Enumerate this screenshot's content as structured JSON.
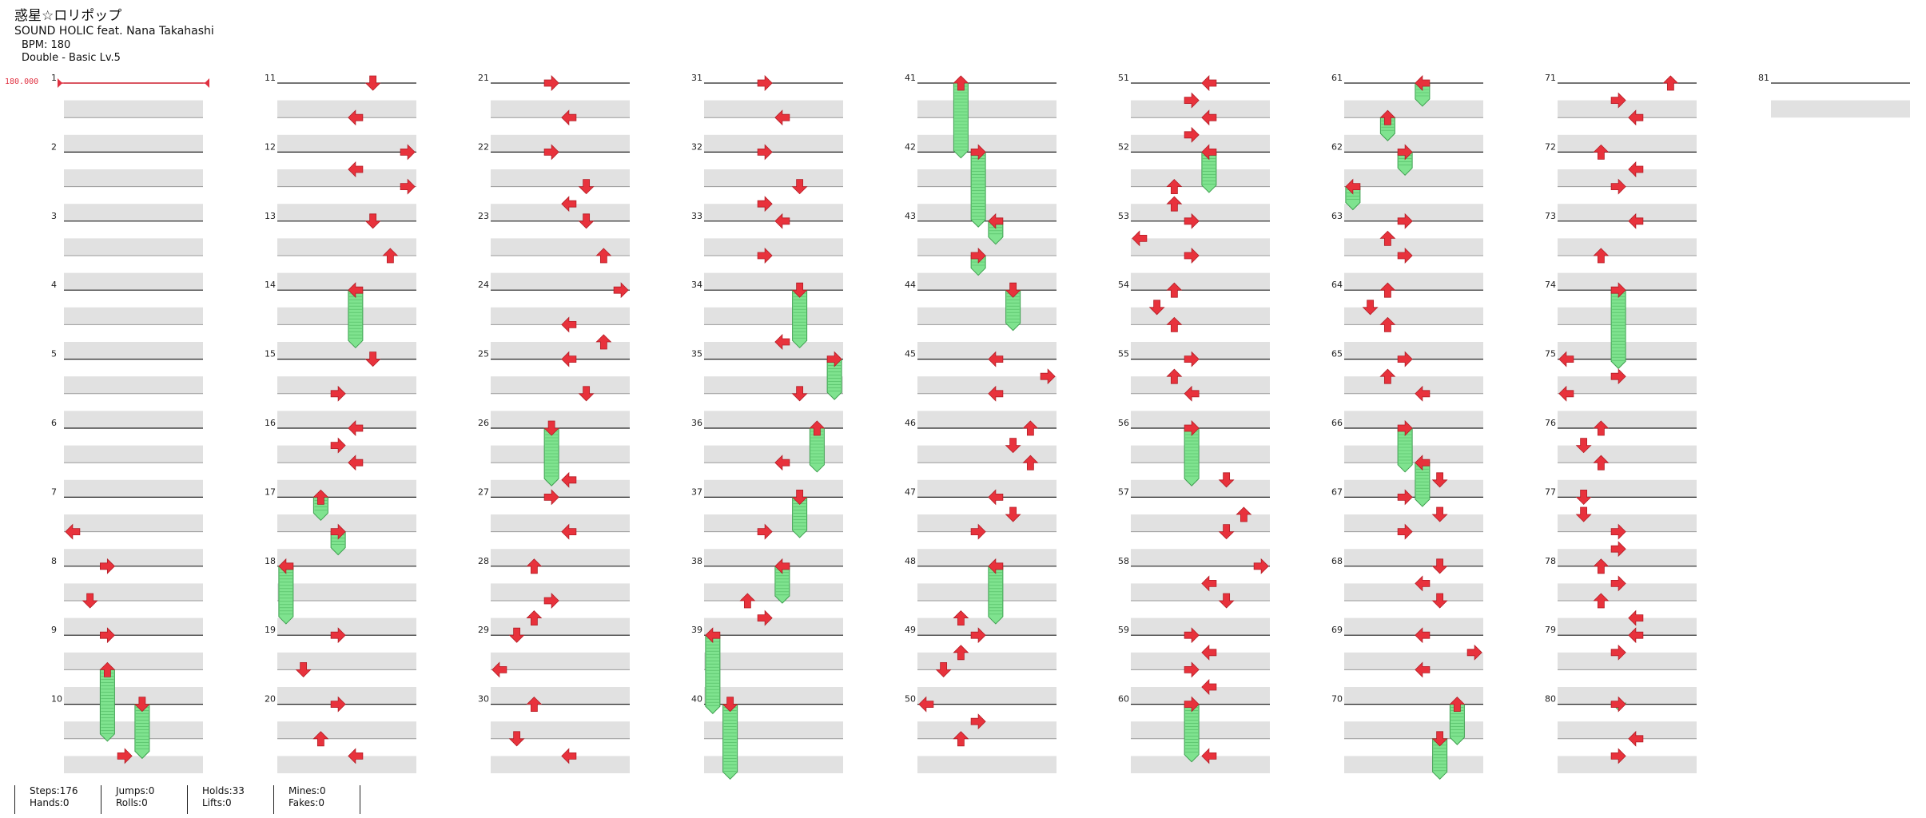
{
  "song": {
    "title": "惑星☆ロリポップ",
    "artist": "SOUND HOLIC feat. Nana Takahashi",
    "bpm_line": "BPM: 180",
    "chart_line": "Double - Basic  Lv.5"
  },
  "bpm_marker": "180.000",
  "measure_first": 1,
  "measure_last": 81,
  "measures_per_column": 10,
  "colors": {
    "arrow": "#e8323c",
    "hold": "#7fe38f",
    "band": "#e1e1e1",
    "bpm": "#e03040"
  },
  "stats": [
    {
      "top": "Steps:176",
      "bottom": "Hands:0"
    },
    {
      "top": "Jumps:0",
      "bottom": "Rolls:0"
    },
    {
      "top": "Holds:33",
      "bottom": "Lifts:0"
    },
    {
      "top": "Mines:0",
      "bottom": "Fakes:0"
    }
  ]
}
